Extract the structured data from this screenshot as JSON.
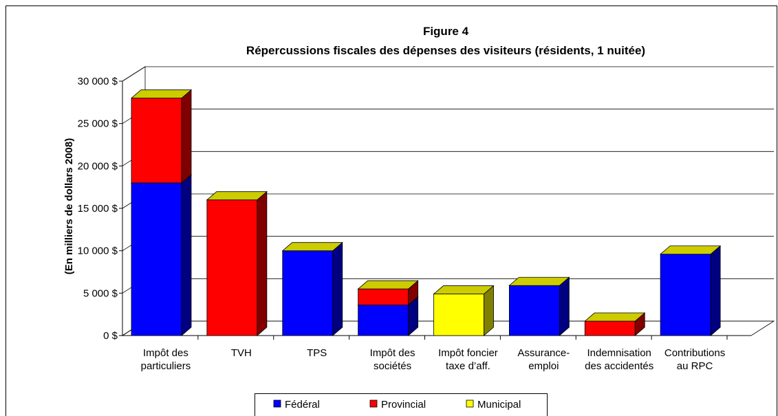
{
  "chart_data": {
    "type": "bar3d_stacked",
    "title": "Figure 4",
    "subtitle": "Répercussions fiscales des dépenses des visiteurs (résidents, 1 nuitée)",
    "y_label": "(En milliers de dollars 2008)",
    "categories": [
      "Impôt des\nparticuliers",
      "TVH",
      "TPS",
      "Impôt des\nsociétés",
      "Impôt foncier\ntaxe d’aff.",
      "Assurance-\nemploi",
      "Indemnisation\ndes accidentés",
      "Contributions\nau RPC"
    ],
    "series": [
      {
        "name": "Fédéral",
        "color": "#0000ff",
        "values": [
          18000,
          0,
          10000,
          3600,
          0,
          5900,
          0,
          9600
        ]
      },
      {
        "name": "Provincial",
        "color": "#ff0000",
        "values": [
          10000,
          16000,
          0,
          1900,
          0,
          0,
          1700,
          0
        ]
      },
      {
        "name": "Municipal",
        "color": "#ffff00",
        "values": [
          0,
          0,
          0,
          0,
          4900,
          0,
          0,
          0
        ]
      }
    ],
    "ylim": [
      0,
      30000
    ],
    "yticks": [
      {
        "value": 0,
        "label": "0 $"
      },
      {
        "value": 5000,
        "label": "5 000 $"
      },
      {
        "value": 10000,
        "label": "10 000 $"
      },
      {
        "value": 15000,
        "label": "15 000 $"
      },
      {
        "value": 20000,
        "label": "20 000 $"
      },
      {
        "value": 25000,
        "label": "25 000 $"
      },
      {
        "value": 30000,
        "label": "30 000 $"
      }
    ],
    "grid": true,
    "legend": "bottom"
  }
}
